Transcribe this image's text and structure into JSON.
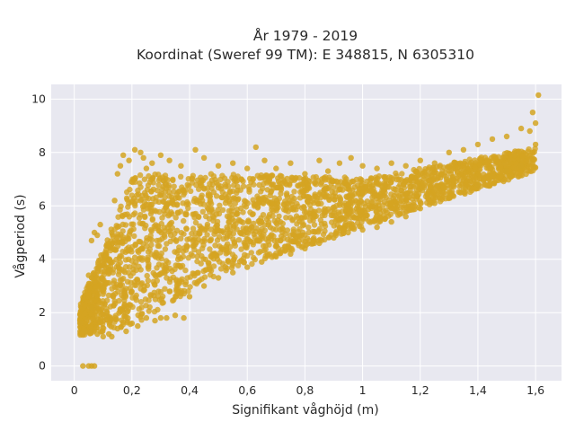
{
  "chart_data": {
    "type": "scatter",
    "title_lines": [
      "År 1979 - 2019",
      "Koordinat (Sweref 99 TM): E 348815, N 6305310"
    ],
    "xlabel": "Signifikant våghöjd (m)",
    "ylabel": "Vågperiod (s)",
    "xlim": [
      -0.08,
      1.69
    ],
    "ylim": [
      -0.55,
      10.55
    ],
    "x_ticks": [
      0,
      0.2,
      0.4,
      0.6,
      0.8,
      1,
      1.2,
      1.4,
      1.6
    ],
    "x_tick_labels": [
      "0",
      "0,2",
      "0,4",
      "0,6",
      "0,8",
      "1",
      "1,2",
      "1,4",
      "1,6"
    ],
    "y_ticks": [
      0,
      2,
      4,
      6,
      8,
      10
    ],
    "y_tick_labels": [
      "0",
      "2",
      "4",
      "6",
      "8",
      "10"
    ],
    "grid": true,
    "colors": {
      "marker": "#d4a422",
      "plot_bg": "#e8e8f0",
      "grid": "#ffffff",
      "text": "#2a2a2a"
    },
    "series": [
      {
        "points": [
          [
            0.03,
            0.0
          ],
          [
            0.05,
            0.0
          ],
          [
            0.06,
            0.0
          ],
          [
            0.07,
            0.0
          ],
          [
            0.02,
            1.6
          ],
          [
            0.04,
            1.3
          ],
          [
            0.06,
            2.2
          ],
          [
            0.05,
            3.4
          ],
          [
            0.06,
            4.7
          ],
          [
            0.07,
            5.0
          ],
          [
            0.08,
            4.9
          ],
          [
            0.09,
            5.3
          ],
          [
            0.1,
            2.9
          ],
          [
            0.12,
            3.6
          ],
          [
            0.13,
            5.0
          ],
          [
            0.14,
            6.2
          ],
          [
            0.15,
            7.2
          ],
          [
            0.16,
            7.5
          ],
          [
            0.17,
            7.9
          ],
          [
            0.19,
            7.7
          ],
          [
            0.21,
            8.1
          ],
          [
            0.23,
            8.0
          ],
          [
            0.24,
            7.8
          ],
          [
            0.25,
            7.4
          ],
          [
            0.27,
            7.6
          ],
          [
            0.3,
            7.9
          ],
          [
            0.33,
            7.7
          ],
          [
            0.37,
            7.5
          ],
          [
            0.42,
            8.1
          ],
          [
            0.45,
            7.8
          ],
          [
            0.5,
            7.5
          ],
          [
            0.55,
            7.6
          ],
          [
            0.6,
            7.4
          ],
          [
            0.63,
            8.2
          ],
          [
            0.66,
            7.7
          ],
          [
            0.7,
            7.4
          ],
          [
            0.75,
            7.6
          ],
          [
            0.8,
            7.2
          ],
          [
            0.85,
            7.7
          ],
          [
            0.88,
            7.3
          ],
          [
            0.92,
            7.6
          ],
          [
            0.96,
            7.8
          ],
          [
            1.0,
            7.5
          ],
          [
            1.05,
            7.4
          ],
          [
            1.1,
            7.6
          ],
          [
            1.15,
            7.5
          ],
          [
            1.2,
            7.7
          ],
          [
            1.25,
            7.6
          ],
          [
            1.3,
            8.0
          ],
          [
            1.35,
            8.1
          ],
          [
            1.4,
            8.3
          ],
          [
            1.45,
            8.5
          ],
          [
            1.5,
            8.6
          ],
          [
            1.55,
            8.9
          ],
          [
            1.58,
            8.8
          ],
          [
            1.59,
            9.5
          ],
          [
            1.6,
            9.1
          ],
          [
            1.61,
            10.15
          ],
          [
            0.15,
            1.4
          ],
          [
            0.2,
            1.6
          ],
          [
            0.25,
            1.8
          ],
          [
            0.3,
            1.8
          ],
          [
            0.35,
            1.9
          ],
          [
            0.38,
            1.8
          ],
          [
            0.4,
            2.6
          ],
          [
            0.45,
            3.0
          ],
          [
            0.5,
            3.3
          ],
          [
            0.55,
            3.5
          ],
          [
            0.6,
            3.7
          ],
          [
            0.65,
            3.9
          ],
          [
            0.7,
            4.1
          ],
          [
            0.75,
            4.2
          ],
          [
            0.8,
            4.4
          ],
          [
            0.85,
            4.6
          ],
          [
            0.9,
            4.8
          ],
          [
            0.95,
            5.0
          ],
          [
            1.0,
            5.1
          ],
          [
            1.05,
            5.2
          ],
          [
            1.1,
            5.4
          ],
          [
            1.15,
            5.6
          ],
          [
            1.2,
            5.9
          ],
          [
            1.25,
            6.1
          ],
          [
            1.3,
            6.3
          ],
          [
            1.35,
            6.6
          ],
          [
            1.4,
            6.8
          ],
          [
            1.45,
            7.1
          ],
          [
            1.5,
            7.3
          ],
          [
            1.55,
            7.5
          ],
          [
            1.6,
            8.3
          ],
          [
            0.08,
            1.2
          ],
          [
            0.1,
            1.1
          ],
          [
            0.12,
            1.2
          ],
          [
            0.13,
            1.1
          ],
          [
            0.18,
            1.3
          ],
          [
            0.22,
            1.5
          ],
          [
            0.28,
            1.7
          ],
          [
            0.32,
            1.8
          ]
        ]
      }
    ]
  }
}
